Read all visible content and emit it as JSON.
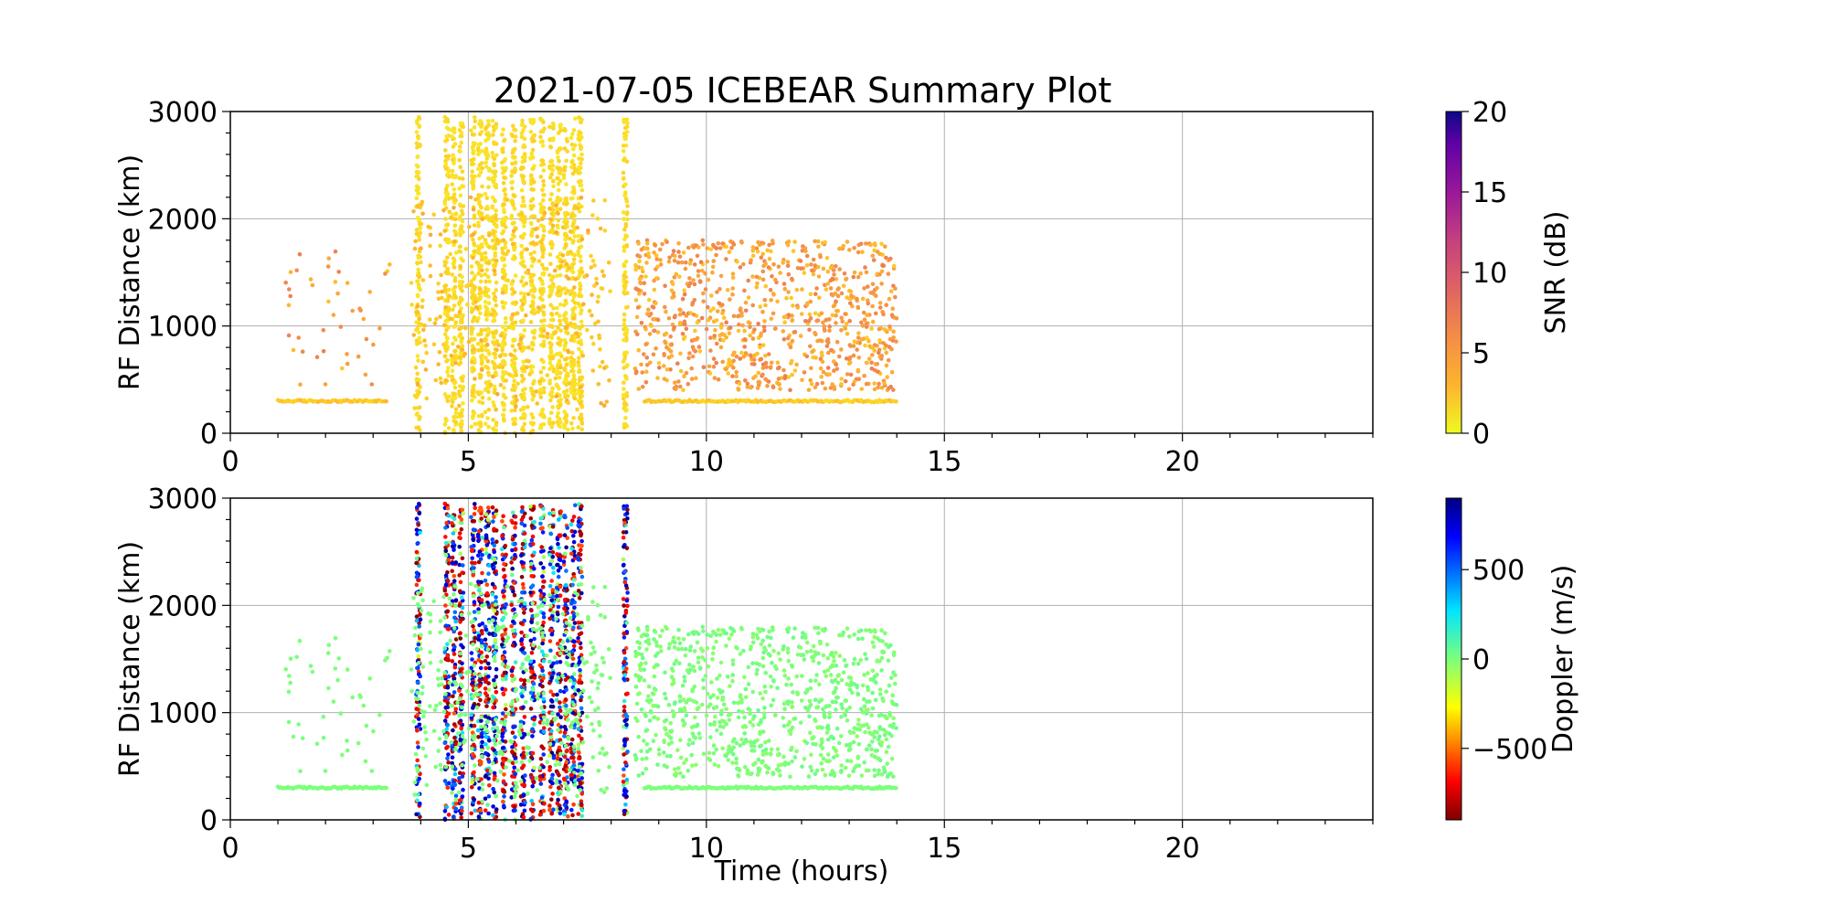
{
  "chart_data": [
    {
      "type": "scatter",
      "title": "2021-07-05 ICEBEAR Summary Plot",
      "xlabel": "",
      "ylabel": "RF Distance (km)",
      "xlim": [
        0,
        24
      ],
      "ylim": [
        0,
        3000
      ],
      "xticks": [
        0,
        5,
        10,
        15,
        20
      ],
      "yticks": [
        0,
        1000,
        2000,
        3000
      ],
      "grid": true,
      "colorbar": {
        "label": "SNR (dB)",
        "range": [
          0,
          20
        ],
        "ticks": [
          0,
          5,
          10,
          15,
          20
        ],
        "colormap": "plasma_r"
      },
      "series": [
        {
          "color_by": "snr",
          "description_values": {
            "baseline_km": 300,
            "time_ranges_hours": [
              [
                1.0,
                3.3
              ],
              [
                8.7,
                14.0
              ]
            ],
            "dense_columns_hours": [
              3.95,
              4.55,
              4.7,
              4.85,
              5.1,
              5.25,
              5.4,
              5.55,
              5.75,
              5.95,
              6.15,
              6.35,
              6.55,
              6.75,
              6.9,
              7.05,
              7.2,
              7.35,
              8.3
            ],
            "scatter_band_km": [
              400,
              1800
            ]
          }
        }
      ]
    },
    {
      "type": "scatter",
      "title": "",
      "xlabel": "Time (hours)",
      "ylabel": "RF Distance (km)",
      "xlim": [
        0,
        24
      ],
      "ylim": [
        0,
        3000
      ],
      "xticks": [
        0,
        5,
        10,
        15,
        20
      ],
      "yticks": [
        0,
        1000,
        2000,
        3000
      ],
      "grid": true,
      "colorbar": {
        "label": "Doppler (m/s)",
        "range": [
          -900,
          900
        ],
        "ticks": [
          -500,
          0,
          500
        ],
        "tick_labels": [
          "−500",
          "0",
          "500"
        ],
        "colormap": "jet_r"
      },
      "series": [
        {
          "color_by": "doppler"
        }
      ]
    }
  ],
  "colors": {
    "snr_low": "#f9e829",
    "snr_high": "#22108a",
    "doppler_zero": "#7dff7a"
  }
}
